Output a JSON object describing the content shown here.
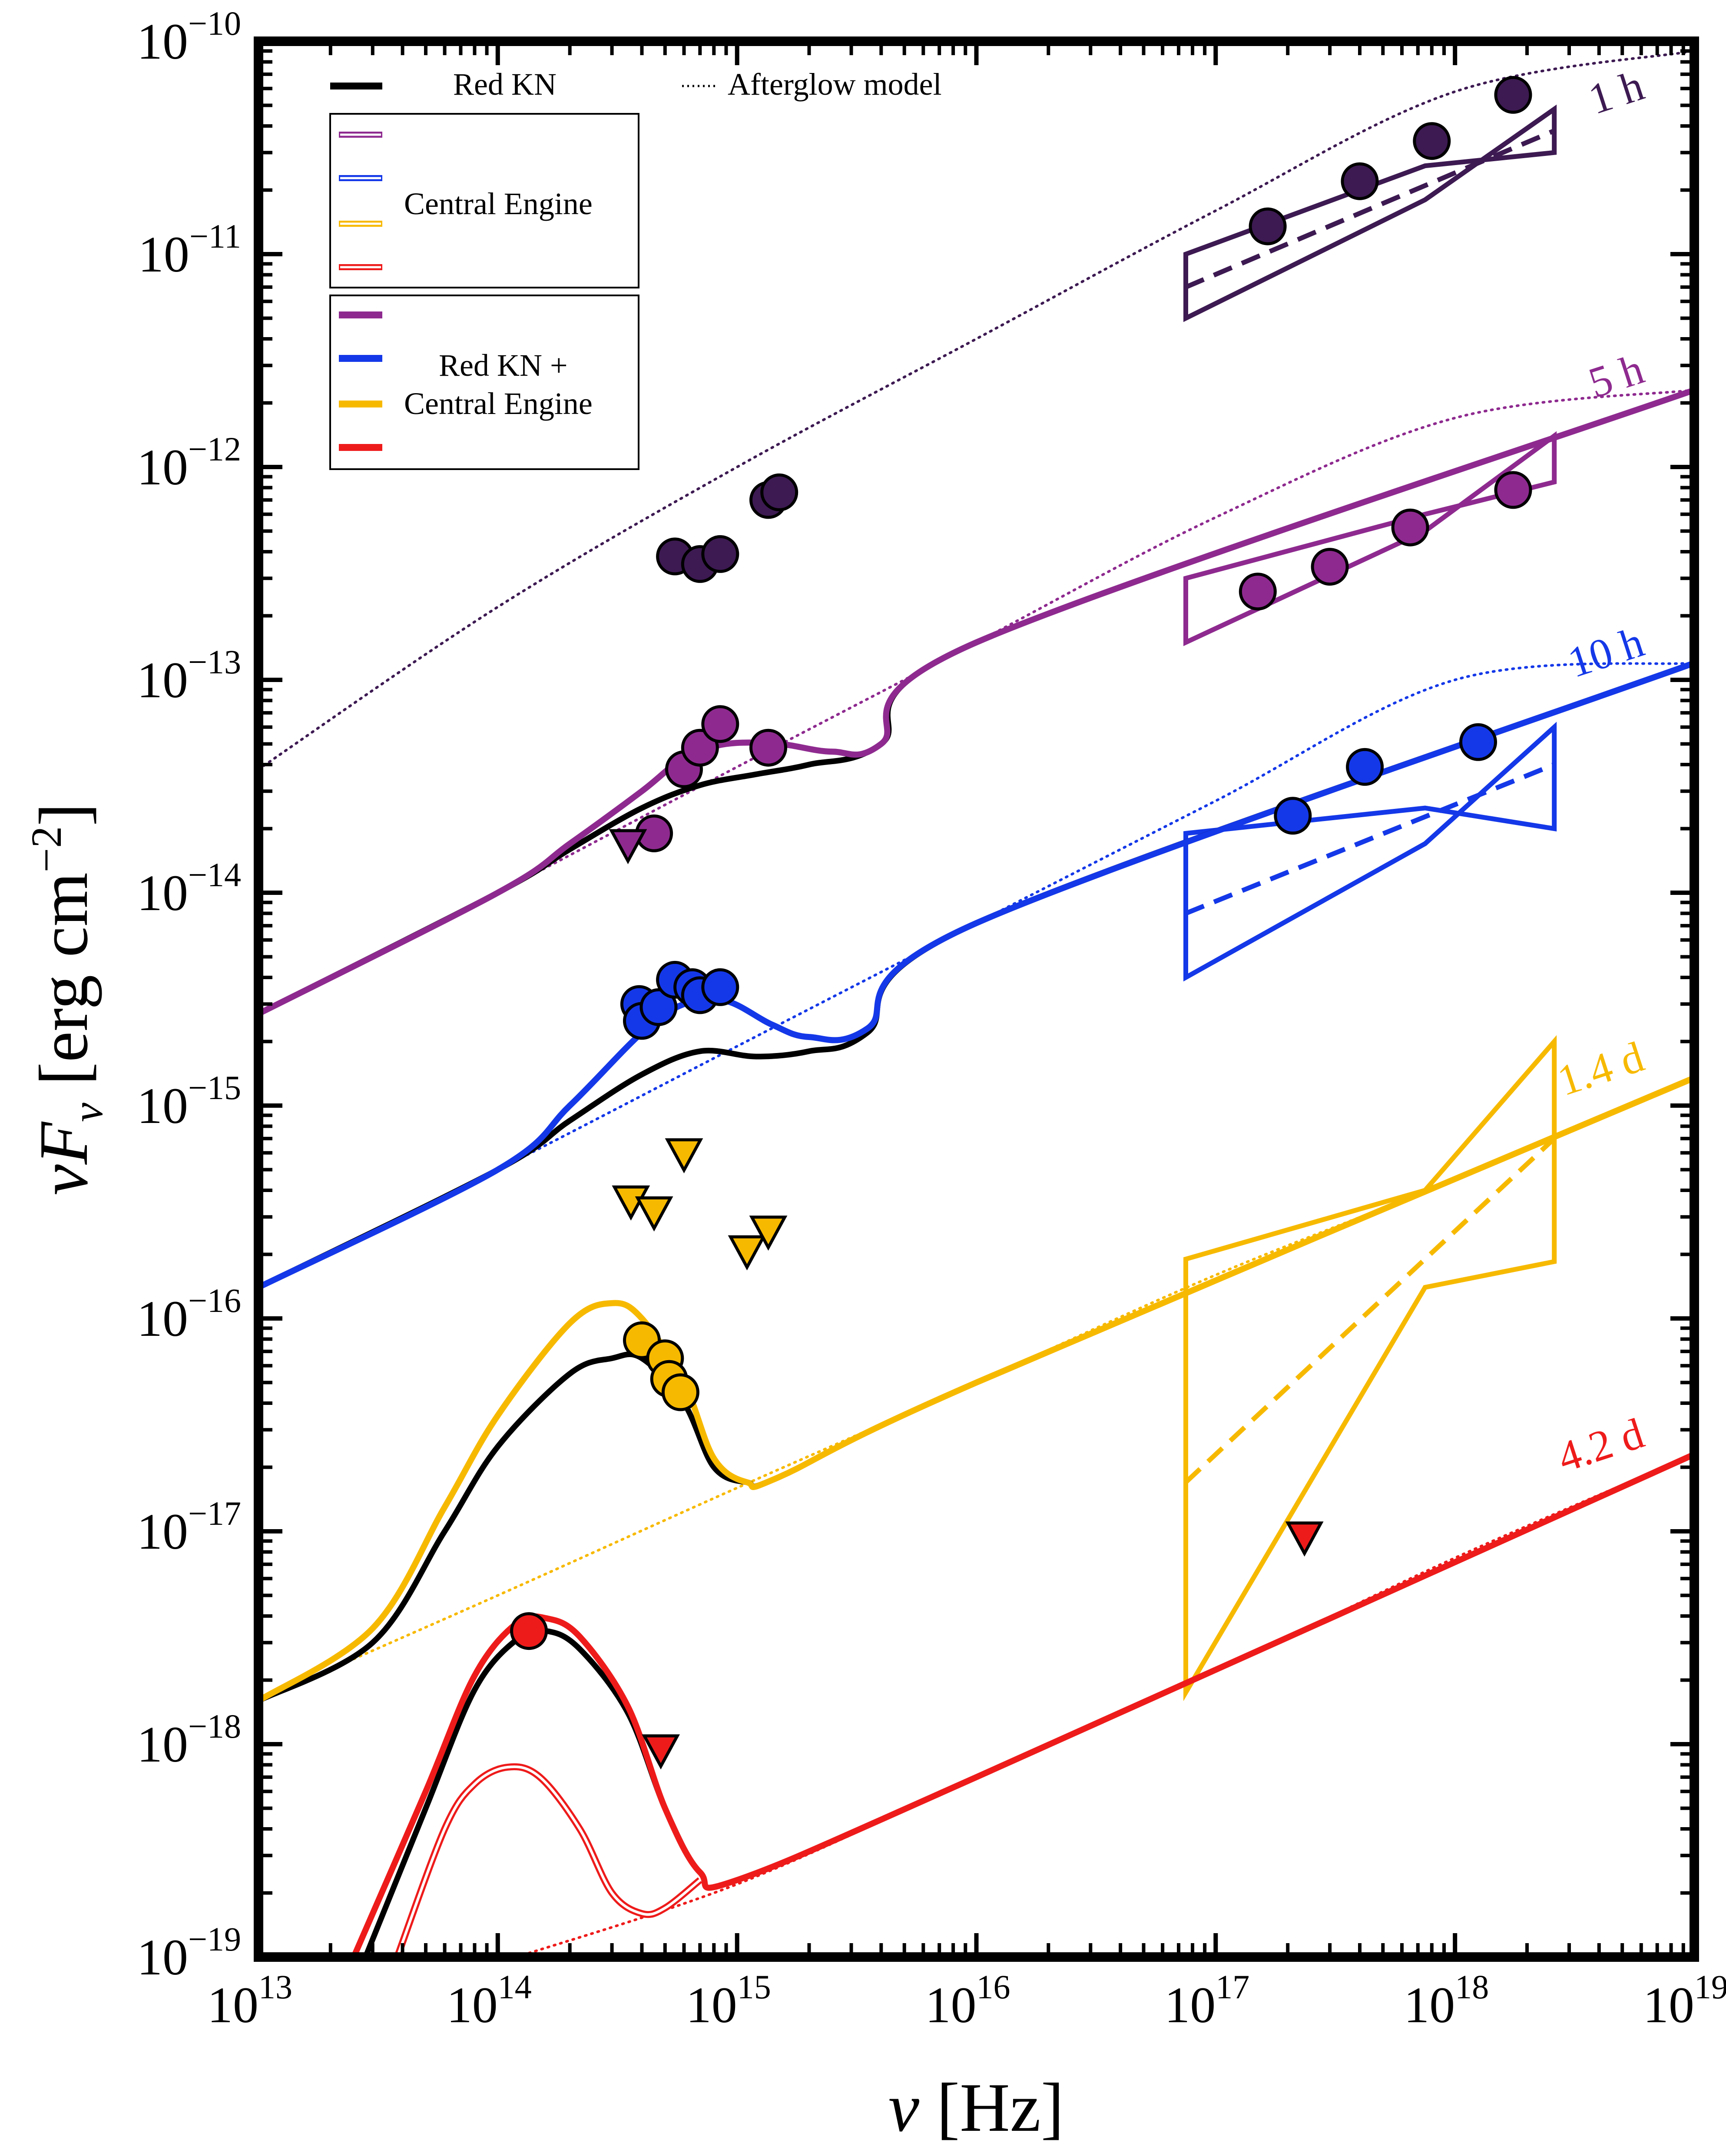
{
  "chart_data": {
    "type": "line",
    "xscale": "log",
    "yscale": "log",
    "xlim": [
      10000000000000.0,
      1e+19
    ],
    "ylim": [
      1e-19,
      1e-10
    ],
    "xlabel": "ν [Hz]",
    "ylabel": "νF_ν [erg cm^−2]",
    "x_ticks": [
      {
        "value": 10000000000000.0,
        "base": "10",
        "exp": "13"
      },
      {
        "value": 100000000000000.0,
        "base": "10",
        "exp": "14"
      },
      {
        "value": 1000000000000000.0,
        "base": "10",
        "exp": "15"
      },
      {
        "value": 1e+16,
        "base": "10",
        "exp": "16"
      },
      {
        "value": 1e+17,
        "base": "10",
        "exp": "17"
      },
      {
        "value": 1e+18,
        "base": "10",
        "exp": "18"
      },
      {
        "value": 1e+19,
        "base": "10",
        "exp": "19"
      }
    ],
    "y_ticks": [
      {
        "value": 1e-19,
        "base": "10",
        "exp": "−19"
      },
      {
        "value": 1e-18,
        "base": "10",
        "exp": "−18"
      },
      {
        "value": 1e-17,
        "base": "10",
        "exp": "−17"
      },
      {
        "value": 1e-16,
        "base": "10",
        "exp": "−16"
      },
      {
        "value": 1e-15,
        "base": "10",
        "exp": "−15"
      },
      {
        "value": 1e-14,
        "base": "10",
        "exp": "−14"
      },
      {
        "value": 1e-13,
        "base": "10",
        "exp": "−13"
      },
      {
        "value": 1e-12,
        "base": "10",
        "exp": "−12"
      },
      {
        "value": 1e-11,
        "base": "10",
        "exp": "−11"
      },
      {
        "value": 1e-10,
        "base": "10",
        "exp": "−10"
      }
    ],
    "legend": {
      "red_kn": "Red KN",
      "afterglow": "Afterglow model",
      "central_engine": "Central Engine",
      "combined_line1": "Red KN +",
      "combined_line2": "Central Engine",
      "colors": [
        "#8e2a8f",
        "#1438e8",
        "#f7b900",
        "#ee1b1b"
      ]
    },
    "series": [
      {
        "name": "1 h",
        "label": "1 h",
        "color": "#3d1a52",
        "afterglow": [
          [
            10000000000000.0,
            3.8e-14
          ],
          [
            100000000000000.0,
            2.2e-13
          ],
          [
            1000000000000000.0,
            1e-12
          ],
          [
            1e+16,
            4e-12
          ],
          [
            1e+17,
            1.6e-11
          ],
          [
            1e+18,
            5.8e-11
          ],
          [
            1e+19,
            9e-11
          ]
        ],
        "points": [
          [
            550000000000000.0,
            3.8e-13
          ],
          [
            700000000000000.0,
            3.5e-13
          ],
          [
            850000000000000.0,
            3.9e-13
          ],
          [
            1350000000000000.0,
            7e-13
          ],
          [
            1500000000000000.0,
            7.6e-13
          ],
          [
            1.65e+17,
            1.35e-11
          ],
          [
            4e+17,
            2.2e-11
          ],
          [
            8e+17,
            3.4e-11
          ],
          [
            1.75e+18,
            5.6e-11
          ]
        ],
        "xray_bowtie": {
          "lo": 7.5e+16,
          "hi": 2.6e+18,
          "upper": [
            [
              7.5e+16,
              1e-11
            ],
            [
              7.5e+17,
              2.6e-11
            ],
            [
              2.6e+18,
              3e-11
            ]
          ],
          "lower": [
            [
              7.5e+16,
              5e-12
            ],
            [
              7.5e+17,
              1.8e-11
            ],
            [
              2.6e+18,
              4.8e-11
            ]
          ],
          "best": [
            [
              7.5e+16,
              7e-12
            ],
            [
              2.6e+18,
              3.8e-11
            ]
          ]
        }
      },
      {
        "name": "5 h",
        "label": "5 h",
        "color": "#8e2a8f",
        "afterglow": [
          [
            10000000000000.0,
            2.7e-15
          ],
          [
            100000000000000.0,
            1e-14
          ],
          [
            1000000000000000.0,
            3.9e-14
          ],
          [
            1e+16,
            1.5e-13
          ],
          [
            1e+17,
            5.8e-13
          ],
          [
            1e+18,
            1.7e-12
          ],
          [
            1e+19,
            2.3e-12
          ]
        ],
        "red_kn": [
          [
            10000000000000.0,
            2.7e-15
          ],
          [
            100000000000000.0,
            1e-14
          ],
          [
            200000000000000.0,
            1.6e-14
          ],
          [
            400000000000000.0,
            2.5e-14
          ],
          [
            700000000000000.0,
            3.2e-14
          ],
          [
            1200000000000000.0,
            3.6e-14
          ],
          [
            2000000000000000.0,
            4e-14
          ],
          [
            4000000000000000.0,
            5e-14
          ],
          [
            1e+16,
            1.5e-13
          ],
          [
            1e+19,
            2.3e-12
          ]
        ],
        "combined": [
          [
            10000000000000.0,
            2.7e-15
          ],
          [
            100000000000000.0,
            1e-14
          ],
          [
            200000000000000.0,
            1.7e-14
          ],
          [
            400000000000000.0,
            3e-14
          ],
          [
            600000000000000.0,
            4.3e-14
          ],
          [
            900000000000000.0,
            5e-14
          ],
          [
            1500000000000000.0,
            5e-14
          ],
          [
            2500000000000000.0,
            4.6e-14
          ],
          [
            4000000000000000.0,
            5e-14
          ],
          [
            1e+16,
            1.5e-13
          ],
          [
            1e+19,
            2.3e-12
          ]
        ],
        "points": [
          [
            450000000000000.0,
            1.9e-14
          ],
          [
            600000000000000.0,
            3.8e-14
          ],
          [
            700000000000000.0,
            4.8e-14
          ],
          [
            850000000000000.0,
            6.2e-14
          ],
          [
            1350000000000000.0,
            4.8e-14
          ],
          [
            1.5e+17,
            2.6e-13
          ],
          [
            3e+17,
            3.4e-13
          ],
          [
            6.5e+17,
            5.2e-13
          ],
          [
            1.75e+18,
            7.8e-13
          ]
        ],
        "upper_limits": [
          [
            350000000000000.0,
            1.7e-14
          ]
        ],
        "xray_bowtie": {
          "lo": 7.5e+16,
          "hi": 2.6e+18,
          "upper": [
            [
              7.5e+16,
              3e-13
            ],
            [
              7.5e+17,
              6e-13
            ],
            [
              2.6e+18,
              8.5e-13
            ]
          ],
          "lower": [
            [
              7.5e+16,
              1.5e-13
            ],
            [
              7.5e+17,
              5e-13
            ],
            [
              2.6e+18,
              1.4e-12
            ]
          ]
        }
      },
      {
        "name": "10 h",
        "label": "10 h",
        "color": "#1438e8",
        "afterglow": [
          [
            10000000000000.0,
            1.4e-16
          ],
          [
            100000000000000.0,
            5e-16
          ],
          [
            1000000000000000.0,
            1.9e-15
          ],
          [
            1e+16,
            7.2e-15
          ],
          [
            1e+17,
            2.7e-14
          ],
          [
            1e+18,
            1e-13
          ],
          [
            1e+19,
            1.2e-13
          ]
        ],
        "red_kn": [
          [
            10000000000000.0,
            1.4e-16
          ],
          [
            100000000000000.0,
            5e-16
          ],
          [
            200000000000000.0,
            8.5e-16
          ],
          [
            400000000000000.0,
            1.4e-15
          ],
          [
            700000000000000.0,
            1.8e-15
          ],
          [
            1200000000000000.0,
            1.7e-15
          ],
          [
            2000000000000000.0,
            1.8e-15
          ],
          [
            3500000000000000.0,
            2.2e-15
          ],
          [
            1e+16,
            7.2e-15
          ],
          [
            1e+19,
            1.2e-13
          ]
        ],
        "combined": [
          [
            10000000000000.0,
            1.4e-16
          ],
          [
            100000000000000.0,
            5e-16
          ],
          [
            200000000000000.0,
            1e-15
          ],
          [
            400000000000000.0,
            2.2e-15
          ],
          [
            600000000000000.0,
            3e-15
          ],
          [
            900000000000000.0,
            3.1e-15
          ],
          [
            1400000000000000.0,
            2.4e-15
          ],
          [
            2000000000000000.0,
            2.1e-15
          ],
          [
            3500000000000000.0,
            2.3e-15
          ],
          [
            1e+16,
            7.2e-15
          ],
          [
            1e+19,
            1.2e-13
          ]
        ],
        "points": [
          [
            390000000000000.0,
            3e-15
          ],
          [
            400000000000000.0,
            2.5e-15
          ],
          [
            470000000000000.0,
            2.9e-15
          ],
          [
            550000000000000.0,
            3.9e-15
          ],
          [
            650000000000000.0,
            3.6e-15
          ],
          [
            700000000000000.0,
            3.3e-15
          ],
          [
            850000000000000.0,
            3.6e-15
          ],
          [
            2.1e+17,
            2.3e-14
          ],
          [
            4.2e+17,
            3.9e-14
          ],
          [
            1.25e+18,
            5.1e-14
          ]
        ],
        "xray_bowtie": {
          "lo": 7.5e+16,
          "hi": 2.6e+18,
          "upper": [
            [
              7.5e+16,
              1.9e-14
            ],
            [
              7.5e+17,
              2.5e-14
            ],
            [
              2.6e+18,
              2e-14
            ]
          ],
          "lower": [
            [
              7.5e+16,
              4e-15
            ],
            [
              7.5e+17,
              1.7e-14
            ],
            [
              2.6e+18,
              6e-14
            ]
          ],
          "best": [
            [
              7.5e+16,
              8e-15
            ],
            [
              2.6e+18,
              4e-14
            ]
          ]
        }
      },
      {
        "name": "1.4 d",
        "label": "1.4 d",
        "color": "#f7b900",
        "afterglow": [
          [
            10000000000000.0,
            1.6e-18
          ],
          [
            100000000000000.0,
            5e-18
          ],
          [
            1000000000000000.0,
            1.6e-17
          ],
          [
            1e+16,
            5e-17
          ],
          [
            1e+17,
            1.6e-16
          ],
          [
            1e+18,
            4.5e-16
          ],
          [
            1e+19,
            1.35e-15
          ]
        ],
        "red_kn": [
          [
            10000000000000.0,
            1.6e-18
          ],
          [
            30000000000000.0,
            3e-18
          ],
          [
            60000000000000.0,
            1e-17
          ],
          [
            100000000000000.0,
            2.5e-17
          ],
          [
            200000000000000.0,
            5.5e-17
          ],
          [
            300000000000000.0,
            6.5e-17
          ],
          [
            400000000000000.0,
            6.5e-17
          ],
          [
            600000000000000.0,
            4e-17
          ],
          [
            800000000000000.0,
            2e-17
          ],
          [
            1100000000000000.0,
            1.7e-17
          ],
          [
            1500000000000000.0,
            1.8e-17
          ],
          [
            1e+16,
            5e-17
          ],
          [
            1e+19,
            1.35e-15
          ]
        ],
        "combined": [
          [
            10000000000000.0,
            1.6e-18
          ],
          [
            30000000000000.0,
            3.5e-18
          ],
          [
            60000000000000.0,
            1.3e-17
          ],
          [
            100000000000000.0,
            3.5e-17
          ],
          [
            200000000000000.0,
            9.5e-17
          ],
          [
            300000000000000.0,
            1.18e-16
          ],
          [
            400000000000000.0,
            1e-16
          ],
          [
            600000000000000.0,
            5e-17
          ],
          [
            800000000000000.0,
            2.2e-17
          ],
          [
            1100000000000000.0,
            1.7e-17
          ],
          [
            1500000000000000.0,
            1.8e-17
          ],
          [
            1e+16,
            5e-17
          ],
          [
            1e+19,
            1.35e-15
          ]
        ],
        "points": [
          [
            400000000000000.0,
            7.9e-17
          ],
          [
            500000000000000.0,
            6.5e-17
          ],
          [
            520000000000000.0,
            5.2e-17
          ],
          [
            580000000000000.0,
            4.5e-17
          ]
        ],
        "upper_limits": [
          [
            360000000000000.0,
            3.6e-16
          ],
          [
            450000000000000.0,
            3.2e-16
          ],
          [
            600000000000000.0,
            6e-16
          ],
          [
            1100000000000000.0,
            2.1e-16
          ],
          [
            1350000000000000.0,
            2.6e-16
          ]
        ],
        "xray_bowtie": {
          "lo": 7.5e+16,
          "hi": 2.6e+18,
          "upper": [
            [
              7.5e+16,
              1.9e-16
            ],
            [
              7.5e+17,
              4e-16
            ],
            [
              2.6e+18,
              2e-15
            ]
          ],
          "lower": [
            [
              7.5e+16,
              1.75e-18
            ],
            [
              7.5e+17,
              1.4e-16
            ],
            [
              2.6e+18,
              1.85e-16
            ]
          ],
          "best": [
            [
              7.5e+16,
              1.7e-17
            ],
            [
              2.6e+18,
              7e-16
            ]
          ]
        }
      },
      {
        "name": "4.2 d",
        "label": "4.2 d",
        "color": "#ee1b1b",
        "afterglow": [
          [
            120000000000000.0,
            1e-19
          ],
          [
            1000000000000000.0,
            2.2e-19
          ],
          [
            1e+16,
            7e-19
          ],
          [
            1e+17,
            2.2e-18
          ],
          [
            1e+18,
            7.5e-18
          ],
          [
            1e+19,
            2.3e-17
          ]
        ],
        "red_kn": [
          [
            28000000000000.0,
            1e-19
          ],
          [
            50000000000000.0,
            5e-19
          ],
          [
            80000000000000.0,
            1.8e-18
          ],
          [
            120000000000000.0,
            3.1e-18
          ],
          [
            160000000000000.0,
            3.4e-18
          ],
          [
            220000000000000.0,
            2.8e-18
          ],
          [
            350000000000000.0,
            1.4e-18
          ],
          [
            500000000000000.0,
            5e-19
          ],
          [
            700000000000000.0,
            2.5e-19
          ],
          [
            1000000000000000.0,
            2.3e-19
          ],
          [
            1e+16,
            7e-19
          ],
          [
            1e+19,
            2.3e-17
          ]
        ],
        "combined": [
          [
            25000000000000.0,
            1e-19
          ],
          [
            50000000000000.0,
            6e-19
          ],
          [
            80000000000000.0,
            2.1e-18
          ],
          [
            120000000000000.0,
            3.7e-18
          ],
          [
            160000000000000.0,
            3.9e-18
          ],
          [
            220000000000000.0,
            3.2e-18
          ],
          [
            350000000000000.0,
            1.5e-18
          ],
          [
            500000000000000.0,
            5e-19
          ],
          [
            700000000000000.0,
            2.5e-19
          ],
          [
            1000000000000000.0,
            2.3e-19
          ],
          [
            1e+16,
            7e-19
          ],
          [
            1e+19,
            2.3e-17
          ]
        ],
        "central_engine": [
          [
            38000000000000.0,
            1e-19
          ],
          [
            60000000000000.0,
            4e-19
          ],
          [
            80000000000000.0,
            6.5e-19
          ],
          [
            110000000000000.0,
            7.8e-19
          ],
          [
            150000000000000.0,
            7e-19
          ],
          [
            220000000000000.0,
            4e-19
          ],
          [
            300000000000000.0,
            2e-19
          ],
          [
            400000000000000.0,
            1.6e-19
          ],
          [
            500000000000000.0,
            1.7e-19
          ],
          [
            700000000000000.0,
            2.3e-19
          ]
        ],
        "points": [
          [
            135000000000000.0,
            3.4e-18
          ]
        ],
        "upper_limits": [
          [
            480000000000000.0,
            9.5e-19
          ],
          [
            2.35e+17,
            9.5e-18
          ]
        ]
      }
    ]
  }
}
